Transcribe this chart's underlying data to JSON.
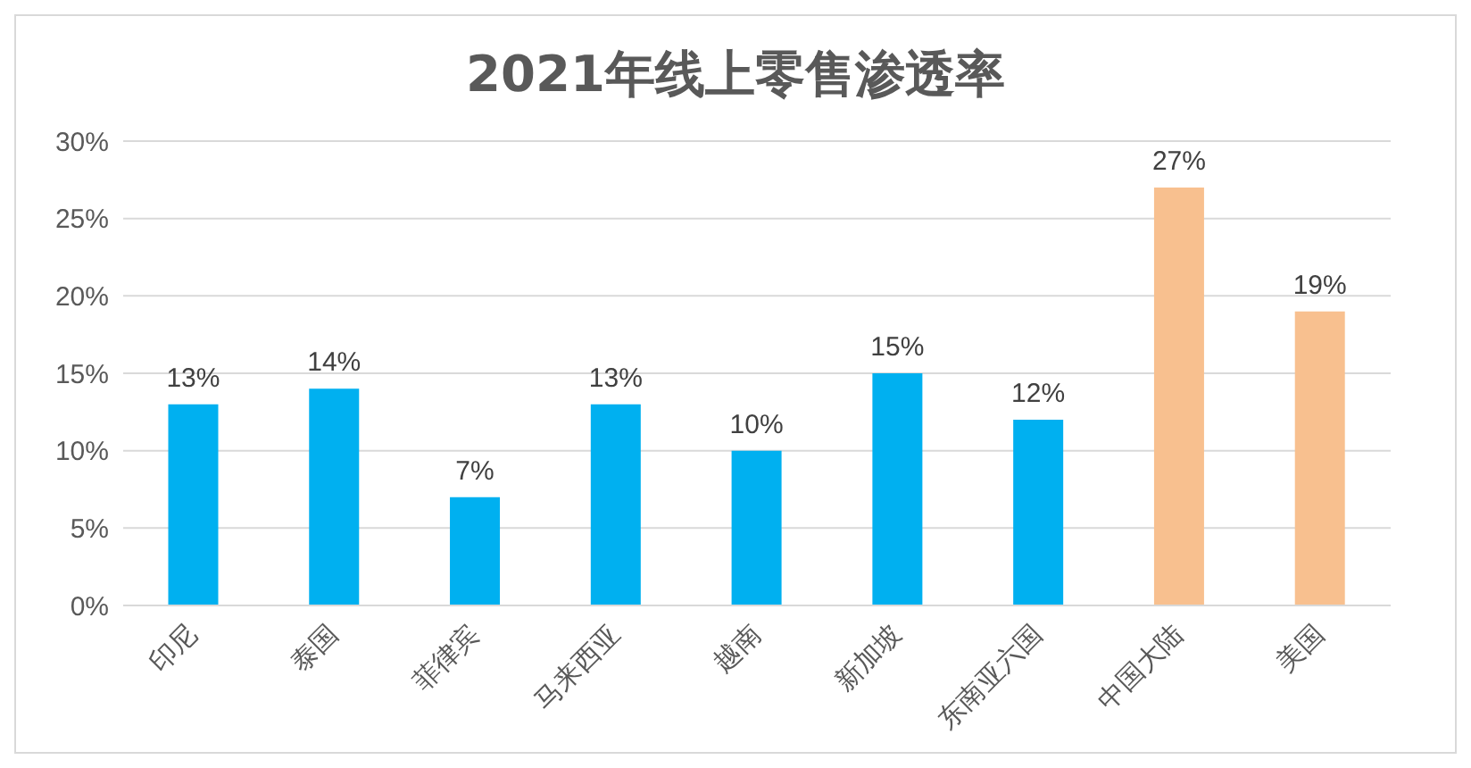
{
  "chart_data": {
    "type": "bar",
    "title": "2021年线上零售渗透率",
    "categories": [
      "印尼",
      "泰国",
      "菲律宾",
      "马来西亚",
      "越南",
      "新加坡",
      "东南亚六国",
      "中国大陆",
      "美国"
    ],
    "values": [
      13,
      14,
      7,
      13,
      10,
      15,
      12,
      27,
      19
    ],
    "colors": [
      "#00b0f0",
      "#00b0f0",
      "#00b0f0",
      "#00b0f0",
      "#00b0f0",
      "#00b0f0",
      "#00b0f0",
      "#f8c08f",
      "#f8c08f"
    ],
    "value_labels": [
      "13%",
      "14%",
      "7%",
      "13%",
      "10%",
      "15%",
      "12%",
      "27%",
      "19%"
    ],
    "ylim": [
      0,
      30
    ],
    "yticks": [
      {
        "value": 0,
        "label": "0%"
      },
      {
        "value": 5,
        "label": "5%"
      },
      {
        "value": 10,
        "label": "10%"
      },
      {
        "value": 15,
        "label": "15%"
      },
      {
        "value": 20,
        "label": "20%"
      },
      {
        "value": 25,
        "label": "25%"
      },
      {
        "value": 30,
        "label": "30%"
      }
    ],
    "grid": "y"
  }
}
